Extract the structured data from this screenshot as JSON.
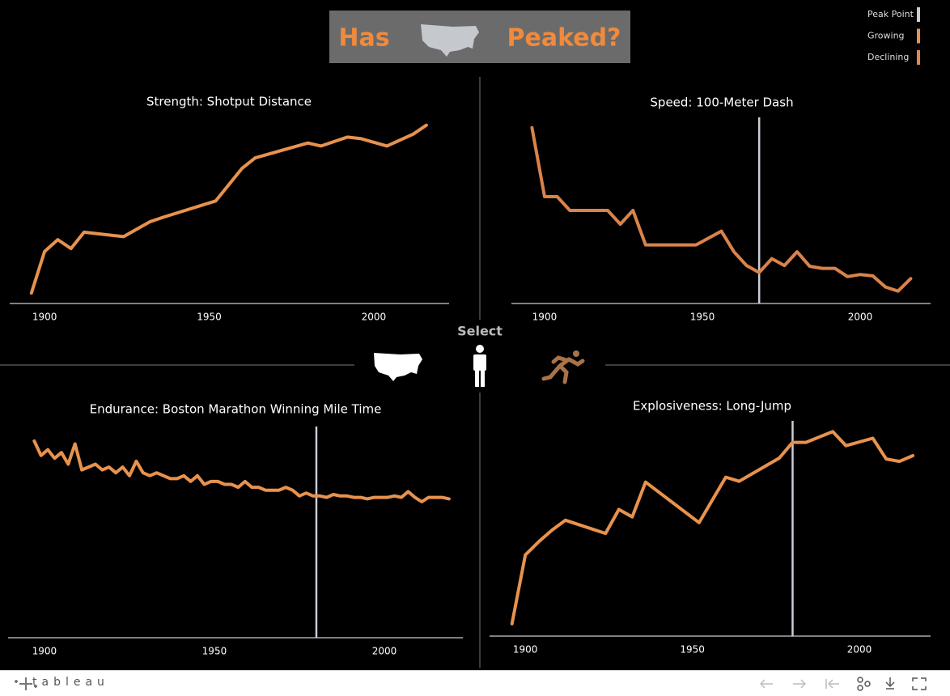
{
  "header": {
    "title_left": "Has",
    "title_right": "Peaked?"
  },
  "legend": [
    {
      "label": "Peak Point",
      "color": "#c8ccd6"
    },
    {
      "label": "Growing",
      "color": "#e8924d"
    },
    {
      "label": "Declining",
      "color": "#e0884a"
    }
  ],
  "selector": {
    "label": "Select"
  },
  "footer": {
    "brand": "tableau"
  },
  "chart_data": [
    {
      "type": "line",
      "title": "Strength: Shotput Distance",
      "color": "#e8924d",
      "x": [
        1896,
        1900,
        1904,
        1908,
        1912,
        1924,
        1932,
        1936,
        1952,
        1960,
        1964,
        1980,
        1984,
        1992,
        1996,
        2004,
        2012,
        2016
      ],
      "values": [
        11.2,
        14.0,
        14.8,
        14.2,
        15.3,
        15.0,
        16.0,
        16.3,
        17.4,
        19.6,
        20.3,
        21.3,
        21.1,
        21.7,
        21.6,
        21.1,
        21.9,
        22.5
      ],
      "xlim": [
        1889.4,
        2022.9
      ],
      "ylim": [
        10.5,
        23.3
      ],
      "xticks": [
        1900,
        1950,
        2000
      ]
    },
    {
      "type": "line",
      "title": "Speed: 100-Meter Dash",
      "color": "#d9834a",
      "x": [
        1896,
        1900,
        1904,
        1908,
        1920,
        1924,
        1928,
        1932,
        1936,
        1948,
        1956,
        1960,
        1964,
        1968,
        1972,
        1976,
        1980,
        1984,
        1988,
        1992,
        1996,
        2000,
        2004,
        2008,
        2012,
        2016
      ],
      "values": [
        12.0,
        11.0,
        11.0,
        10.8,
        10.8,
        10.6,
        10.8,
        10.3,
        10.3,
        10.3,
        10.5,
        10.2,
        10.0,
        9.9,
        10.1,
        10.0,
        10.2,
        9.99,
        9.96,
        9.96,
        9.84,
        9.87,
        9.85,
        9.69,
        9.63,
        9.81
      ],
      "xlim": [
        1889.5,
        2022.3
      ],
      "ylim": [
        9.45,
        12.15
      ],
      "xticks": [
        1900,
        1950,
        2000
      ],
      "peak_line": {
        "x": 1968,
        "color": "#c8ccd6"
      }
    },
    {
      "type": "line",
      "title": "Endurance: Boston Marathon Winning Mile Time",
      "color": "#e8924d",
      "x": [
        1897,
        1899,
        1901,
        1903,
        1905,
        1907,
        1909,
        1911,
        1913,
        1915,
        1917,
        1919,
        1921,
        1923,
        1925,
        1927,
        1929,
        1931,
        1933,
        1935,
        1937,
        1939,
        1941,
        1943,
        1945,
        1947,
        1949,
        1951,
        1953,
        1955,
        1957,
        1959,
        1961,
        1963,
        1965,
        1967,
        1969,
        1971,
        1973,
        1975,
        1977,
        1979,
        1981,
        1983,
        1985,
        1987,
        1989,
        1991,
        1993,
        1995,
        1997,
        1999,
        2001,
        2003,
        2005,
        2007,
        2009,
        2011,
        2013,
        2015,
        2017,
        2019
      ],
      "values": [
        6.9,
        6.4,
        6.6,
        6.3,
        6.5,
        6.1,
        6.8,
        5.9,
        6.0,
        6.1,
        5.9,
        6.0,
        5.8,
        6.0,
        5.7,
        6.2,
        5.8,
        5.7,
        5.8,
        5.7,
        5.6,
        5.6,
        5.7,
        5.5,
        5.7,
        5.4,
        5.5,
        5.5,
        5.4,
        5.4,
        5.3,
        5.5,
        5.3,
        5.3,
        5.2,
        5.2,
        5.2,
        5.3,
        5.2,
        5.0,
        5.1,
        5.0,
        5.0,
        4.95,
        5.05,
        5.0,
        5.0,
        4.95,
        4.95,
        4.9,
        4.95,
        4.95,
        4.95,
        5.0,
        4.95,
        5.15,
        4.95,
        4.8,
        4.95,
        4.95,
        4.95,
        4.9
      ],
      "xlim": [
        1889.3,
        2023.1
      ],
      "ylim": [
        0.1,
        7.4
      ],
      "xticks": [
        1900,
        1950,
        2000
      ],
      "peak_line": {
        "x": 1980,
        "color": "#c8ccd6"
      }
    },
    {
      "type": "line",
      "title": "Explosiveness: Long-Jump",
      "color": "#e8924d",
      "x": [
        1896,
        1900,
        1904,
        1908,
        1912,
        1924,
        1928,
        1932,
        1936,
        1952,
        1960,
        1964,
        1976,
        1980,
        1984,
        1992,
        1996,
        2004,
        2008,
        2012,
        2016
      ],
      "values": [
        6.35,
        7.18,
        7.34,
        7.48,
        7.6,
        7.44,
        7.73,
        7.64,
        8.06,
        7.57,
        8.12,
        8.07,
        8.35,
        8.54,
        8.54,
        8.67,
        8.5,
        8.59,
        8.34,
        8.31,
        8.38
      ],
      "xlim": [
        1889.3,
        2021.3
      ],
      "ylim": [
        6.2,
        8.8
      ],
      "xticks": [
        1900,
        1950,
        2000
      ],
      "peak_line": {
        "x": 1980,
        "color": "#c8ccd6"
      }
    }
  ]
}
